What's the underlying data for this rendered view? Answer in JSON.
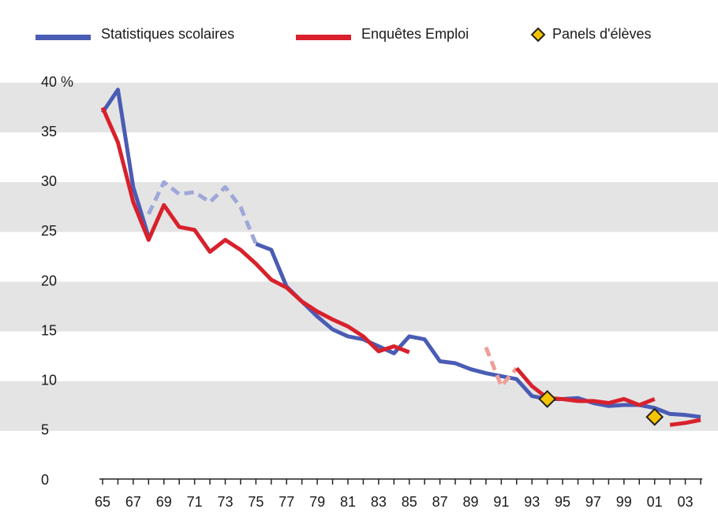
{
  "chart_data": {
    "type": "line",
    "x": [
      1965,
      1966,
      1967,
      1968,
      1969,
      1970,
      1971,
      1972,
      1973,
      1974,
      1975,
      1976,
      1977,
      1978,
      1979,
      1980,
      1981,
      1982,
      1983,
      1984,
      1985,
      1986,
      1987,
      1988,
      1989,
      1990,
      1991,
      1992,
      1993,
      1994,
      1995,
      1996,
      1997,
      1998,
      1999,
      2000,
      2001,
      2002,
      2003,
      2004
    ],
    "xlim": [
      1965,
      2004
    ],
    "xticks": [
      {
        "value": 1965,
        "label": "65"
      },
      {
        "value": 1967,
        "label": "67"
      },
      {
        "value": 1969,
        "label": "69"
      },
      {
        "value": 1971,
        "label": "71"
      },
      {
        "value": 1973,
        "label": "73"
      },
      {
        "value": 1975,
        "label": "75"
      },
      {
        "value": 1977,
        "label": "77"
      },
      {
        "value": 1979,
        "label": "79"
      },
      {
        "value": 1981,
        "label": "81"
      },
      {
        "value": 1983,
        "label": "83"
      },
      {
        "value": 1985,
        "label": "85"
      },
      {
        "value": 1987,
        "label": "87"
      },
      {
        "value": 1989,
        "label": "89"
      },
      {
        "value": 1991,
        "label": "91"
      },
      {
        "value": 1993,
        "label": "93"
      },
      {
        "value": 1995,
        "label": "95"
      },
      {
        "value": 1997,
        "label": "97"
      },
      {
        "value": 1999,
        "label": "99"
      },
      {
        "value": 2001,
        "label": "01"
      },
      {
        "value": 2003,
        "label": "03"
      }
    ],
    "xminor_ticks": [
      1966,
      1968,
      1970,
      1972,
      1974,
      1976,
      1978,
      1980,
      1982,
      1984,
      1986,
      1988,
      1990,
      1992,
      1994,
      1996,
      1998,
      2000,
      2002,
      2004
    ],
    "ylim": [
      0,
      40
    ],
    "yticks": [
      0,
      5,
      10,
      15,
      20,
      25,
      30,
      35,
      {
        "value": 40,
        "label": "40 %"
      }
    ],
    "bands": true,
    "series": [
      {
        "name": "Statistiques scolaires",
        "color": "#4a5cb4",
        "lines": [
          {
            "dashed": false,
            "values": [
              37,
              39.3,
              29.5,
              24.5,
              null,
              null,
              null,
              null,
              null,
              null,
              23.8,
              23.2,
              19.5,
              18,
              16.5,
              15.2,
              14.5,
              14.2,
              13.5,
              12.8,
              14.5,
              14.2,
              12,
              11.8,
              11.2,
              10.8,
              10.5,
              10.2,
              8.5,
              8.2,
              8.2,
              8.3,
              7.8,
              7.5,
              7.6,
              7.6,
              7.3,
              6.7,
              6.6,
              6.4
            ]
          },
          {
            "dashed": true,
            "color": "#9ea8d8",
            "values": [
              null,
              null,
              null,
              26.8,
              30,
              28.8,
              29,
              28,
              29.5,
              27.5,
              23.8,
              null,
              null,
              null,
              null,
              null,
              null,
              null,
              null,
              null,
              null,
              null,
              null,
              null,
              null,
              null,
              null,
              null,
              null,
              null,
              null,
              null,
              null,
              null,
              null,
              null,
              null,
              null,
              null,
              null
            ]
          }
        ]
      },
      {
        "name": "Enquêtes Emploi",
        "color": "#d8212c",
        "lines": [
          {
            "dashed": false,
            "values": [
              37.5,
              34,
              28,
              24.2,
              27.7,
              25.5,
              25.2,
              23,
              24.2,
              23.2,
              21.8,
              20.2,
              19.4,
              18,
              17,
              16.2,
              15.5,
              14.5,
              13,
              13.5,
              12.9,
              null,
              null,
              null,
              null,
              null,
              null,
              11.3,
              9.5,
              8.3,
              8.2,
              8,
              8,
              7.8,
              8.2,
              7.6,
              8.2,
              null,
              null,
              null
            ]
          },
          {
            "dashed": false,
            "values": [
              null,
              null,
              null,
              null,
              null,
              null,
              null,
              null,
              null,
              null,
              null,
              null,
              null,
              null,
              null,
              null,
              null,
              null,
              null,
              null,
              null,
              null,
              null,
              null,
              null,
              null,
              null,
              null,
              null,
              null,
              null,
              null,
              null,
              null,
              null,
              null,
              null,
              5.6,
              5.8,
              6.1
            ]
          },
          {
            "dashed": true,
            "color": "#ee9f98",
            "values": [
              null,
              null,
              null,
              null,
              null,
              null,
              null,
              null,
              null,
              null,
              null,
              null,
              null,
              null,
              null,
              null,
              null,
              null,
              null,
              null,
              null,
              null,
              null,
              null,
              null,
              13.4,
              9.5,
              11.3,
              null,
              null,
              null,
              null,
              null,
              null,
              null,
              null,
              null,
              null,
              null,
              null
            ]
          }
        ]
      },
      {
        "name": "Panels d'élèves",
        "color": "#f5c400",
        "marker": "diamond",
        "values": [
          null,
          null,
          null,
          null,
          null,
          null,
          null,
          null,
          null,
          null,
          null,
          null,
          null,
          null,
          null,
          null,
          null,
          null,
          null,
          null,
          null,
          null,
          null,
          null,
          null,
          null,
          null,
          null,
          null,
          8.2,
          null,
          null,
          null,
          null,
          null,
          null,
          6.4,
          null,
          null,
          null
        ]
      }
    ]
  }
}
